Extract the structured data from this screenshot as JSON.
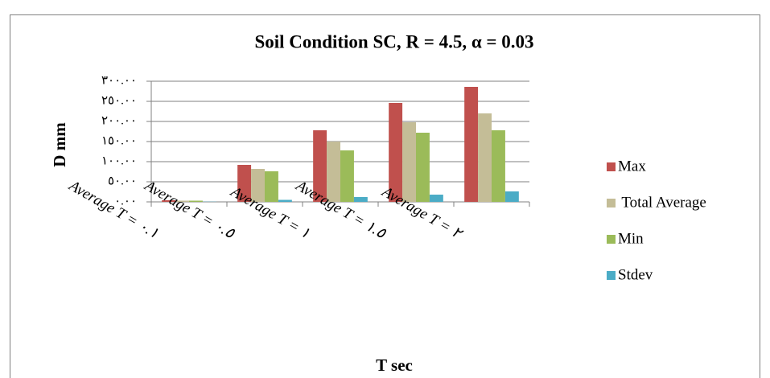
{
  "chart_data": {
    "type": "bar",
    "title": "Soil Condition SC, R = 4.5, α = 0.03",
    "x_label": "T sec",
    "y_label": "D mm",
    "categories": [
      "Average T = ٠.١",
      "Average T = ٠.٥",
      "Average T = ١",
      "Average T = ١.٥",
      "Average T = ٢"
    ],
    "series": [
      {
        "name": "Max",
        "color": "#c0504d",
        "values": [
          4,
          92,
          178,
          246,
          286
        ]
      },
      {
        "name": " Total Average",
        "color": "#c4bd97",
        "values": [
          3,
          82,
          150,
          198,
          220
        ]
      },
      {
        "name": "Min",
        "color": "#9bbb59",
        "values": [
          3,
          76,
          128,
          172,
          178
        ]
      },
      {
        "name": "Stdev",
        "color": "#4bacc6",
        "values": [
          0.5,
          5,
          12,
          18,
          26
        ]
      }
    ],
    "ylim": [
      0,
      300
    ],
    "yticks": [
      {
        "value": 0,
        "label": "٠.٠٠"
      },
      {
        "value": 50,
        "label": "٥٠.٠٠"
      },
      {
        "value": 100,
        "label": "١٠٠.٠٠"
      },
      {
        "value": 150,
        "label": "١٥٠.٠٠"
      },
      {
        "value": 200,
        "label": "٢٠٠.٠٠"
      },
      {
        "value": 250,
        "label": "٢٥٠.٠٠"
      },
      {
        "value": 300,
        "label": "٣٠٠.٠٠"
      }
    ],
    "grid": true,
    "legend": "right"
  }
}
